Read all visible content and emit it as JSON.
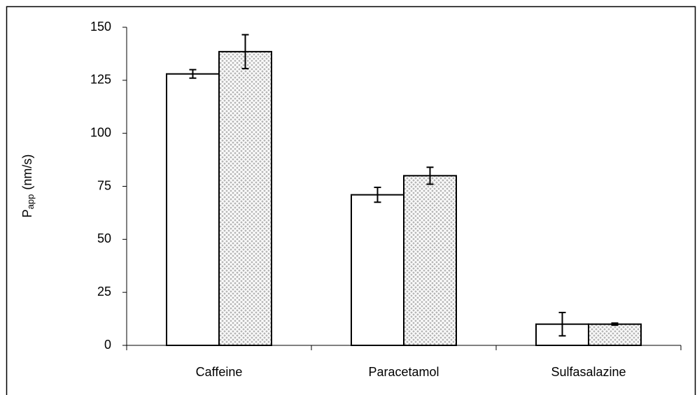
{
  "chart_data": {
    "type": "bar",
    "ylabel": "P",
    "ylabel_subscript": "app",
    "ylabel_unit": "(nm/s)",
    "categories": [
      "Caffeine",
      "Paracetamol",
      "Sulfasalazine"
    ],
    "series": [
      {
        "color": "#ffffff",
        "values": [
          128,
          71,
          10
        ],
        "errors": [
          2,
          3.5,
          5.5
        ]
      },
      {
        "color": "#b8b8b8",
        "pattern": "crosshatch",
        "values": [
          138.5,
          80,
          10
        ],
        "errors": [
          8,
          4,
          0.5
        ]
      }
    ],
    "ylim": [
      0,
      150
    ],
    "yticks": [
      0,
      25,
      50,
      75,
      100,
      125,
      150
    ],
    "grid": false
  }
}
